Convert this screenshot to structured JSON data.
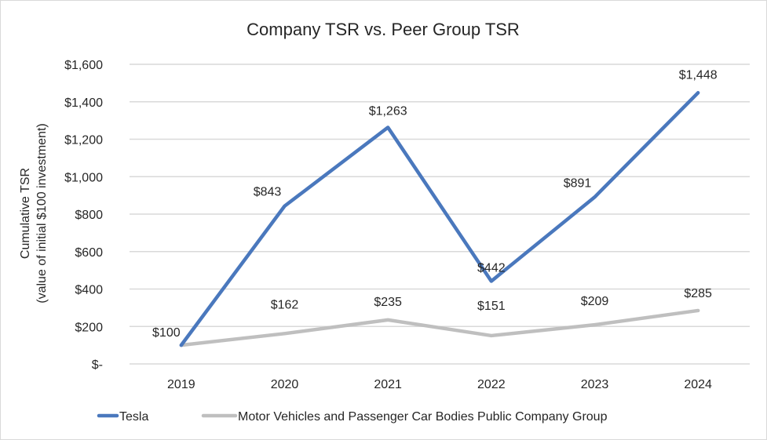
{
  "chart_data": {
    "type": "line",
    "title": "Company TSR vs. Peer Group TSR",
    "xlabel": "",
    "ylabel": [
      "Cumulative TSR",
      "(value of initial $100 investment)"
    ],
    "categories": [
      "2019",
      "2020",
      "2021",
      "2022",
      "2023",
      "2024"
    ],
    "ylim": [
      0,
      1600
    ],
    "yticks": [
      0,
      200,
      400,
      600,
      800,
      1000,
      1200,
      1400,
      1600
    ],
    "ytick_labels": [
      "$-",
      "$200",
      "$400",
      "$600",
      "$800",
      "$1,000",
      "$1,200",
      "$1,400",
      "$1,600"
    ],
    "grid": true,
    "legend_position": "bottom",
    "series": [
      {
        "name": "Tesla",
        "color": "#4a78bd",
        "values": [
          100,
          843,
          1263,
          442,
          891,
          1448
        ],
        "labels": [
          "$100",
          "$843",
          "$1,263",
          "$442",
          "$891",
          "$1,448"
        ]
      },
      {
        "name": "Motor Vehicles and Passenger Car Bodies Public Company Group",
        "color": "#bfbfbf",
        "values": [
          100,
          162,
          235,
          151,
          209,
          285
        ],
        "labels": [
          "",
          "$162",
          "$235",
          "$151",
          "$209",
          "$285"
        ]
      }
    ]
  }
}
